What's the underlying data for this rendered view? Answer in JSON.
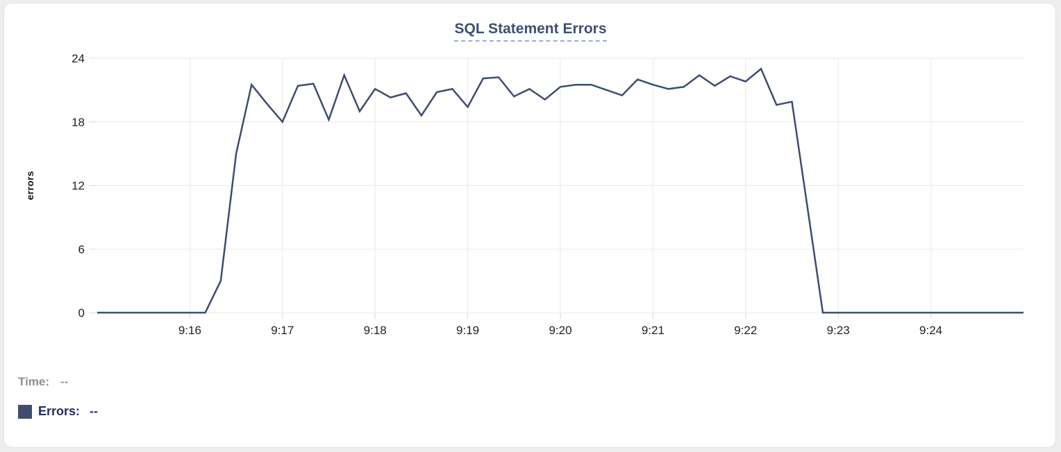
{
  "chart_data": {
    "type": "line",
    "title": "SQL Statement Errors",
    "xlabel": "",
    "ylabel": "errors",
    "ylim": [
      0,
      24
    ],
    "yticks": [
      0,
      6,
      12,
      18,
      24
    ],
    "xticks": [
      "9:16",
      "9:17",
      "9:18",
      "9:19",
      "9:20",
      "9:21",
      "9:22",
      "9:23",
      "9:24"
    ],
    "xlim": [
      "9:15:00",
      "9:25:00"
    ],
    "grid": true,
    "legend_position": "bottom-left",
    "series": [
      {
        "name": "Errors",
        "color": "#3e4c6e",
        "points": [
          [
            "9:15:00",
            0
          ],
          [
            "9:15:10",
            0
          ],
          [
            "9:15:20",
            0
          ],
          [
            "9:15:30",
            0
          ],
          [
            "9:15:40",
            0
          ],
          [
            "9:15:50",
            0
          ],
          [
            "9:16:00",
            0
          ],
          [
            "9:16:10",
            0
          ],
          [
            "9:16:20",
            3
          ],
          [
            "9:16:30",
            15
          ],
          [
            "9:16:40",
            21.5
          ],
          [
            "9:16:50",
            19.7
          ],
          [
            "9:17:00",
            18
          ],
          [
            "9:17:10",
            21.4
          ],
          [
            "9:17:20",
            21.6
          ],
          [
            "9:17:30",
            18.2
          ],
          [
            "9:17:40",
            22.4
          ],
          [
            "9:17:50",
            19
          ],
          [
            "9:18:00",
            21.1
          ],
          [
            "9:18:10",
            20.3
          ],
          [
            "9:18:20",
            20.7
          ],
          [
            "9:18:30",
            18.6
          ],
          [
            "9:18:40",
            20.8
          ],
          [
            "9:18:50",
            21.1
          ],
          [
            "9:19:00",
            19.4
          ],
          [
            "9:19:10",
            22.1
          ],
          [
            "9:19:20",
            22.2
          ],
          [
            "9:19:30",
            20.4
          ],
          [
            "9:19:40",
            21.1
          ],
          [
            "9:19:50",
            20.1
          ],
          [
            "9:20:00",
            21.3
          ],
          [
            "9:20:10",
            21.5
          ],
          [
            "9:20:20",
            21.5
          ],
          [
            "9:20:30",
            21.0
          ],
          [
            "9:20:40",
            20.5
          ],
          [
            "9:20:50",
            22.0
          ],
          [
            "9:21:00",
            21.5
          ],
          [
            "9:21:10",
            21.1
          ],
          [
            "9:21:20",
            21.3
          ],
          [
            "9:21:30",
            22.4
          ],
          [
            "9:21:40",
            21.4
          ],
          [
            "9:21:50",
            22.3
          ],
          [
            "9:22:00",
            21.8
          ],
          [
            "9:22:10",
            23.0
          ],
          [
            "9:22:20",
            19.6
          ],
          [
            "9:22:30",
            19.9
          ],
          [
            "9:22:40",
            10
          ],
          [
            "9:22:50",
            0
          ],
          [
            "9:23:00",
            0
          ],
          [
            "9:23:10",
            0
          ],
          [
            "9:23:20",
            0
          ],
          [
            "9:23:30",
            0
          ],
          [
            "9:23:40",
            0
          ],
          [
            "9:23:50",
            0
          ],
          [
            "9:24:00",
            0
          ],
          [
            "9:24:10",
            0
          ],
          [
            "9:24:20",
            0
          ],
          [
            "9:24:30",
            0
          ],
          [
            "9:24:40",
            0
          ],
          [
            "9:24:50",
            0
          ],
          [
            "9:25:00",
            0
          ]
        ]
      }
    ]
  },
  "footer": {
    "time_label": "Time:",
    "time_value": "--",
    "errors_label": "Errors:",
    "errors_value": "--"
  },
  "colors": {
    "line": "#3e4c6e",
    "title": "#3d4f73",
    "title_underline": "#9fadc6",
    "grid": "#e9e9e9",
    "axis_text": "#1f1f1f",
    "time_gray": "#8f8f94",
    "errors_navy": "#222e5d",
    "card_border": "#e2e2e2"
  }
}
